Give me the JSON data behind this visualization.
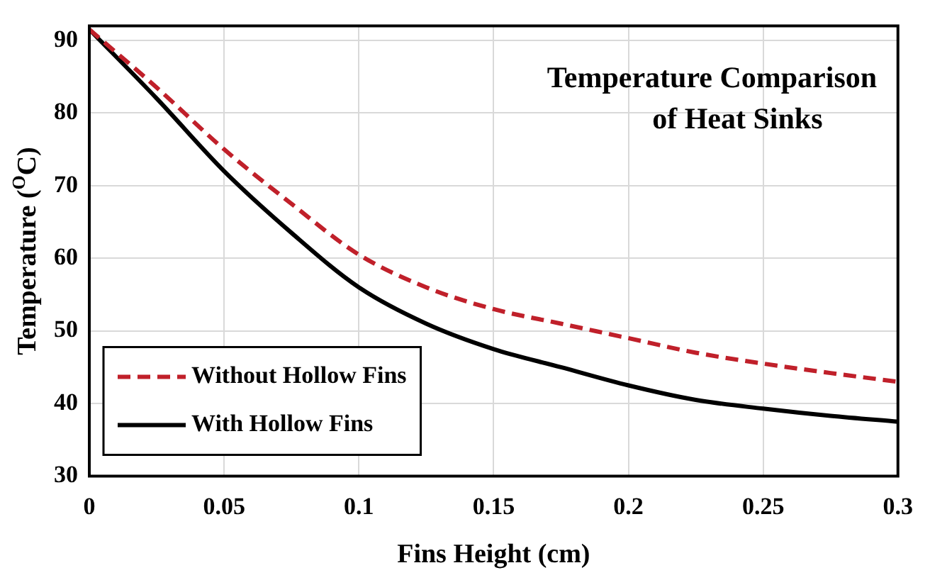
{
  "chart_data": {
    "type": "line",
    "title": "Temperature Comparison\nof Heat Sinks",
    "xlabel": "Fins Height (cm)",
    "ylabel": "Temperature ($^{O}$C)",
    "x": [
      0,
      0.025,
      0.05,
      0.075,
      0.1,
      0.125,
      0.15,
      0.175,
      0.2,
      0.225,
      0.25,
      0.275,
      0.3
    ],
    "series": [
      {
        "name": "Without Hollow Fins",
        "color": "#c0202a",
        "line_style": "dashed",
        "values": [
          91.5,
          83.5,
          75,
          67.5,
          60.5,
          56,
          53,
          51,
          49,
          47,
          45.5,
          44.2,
          43
        ]
      },
      {
        "name": "With Hollow Fins",
        "color": "#000000",
        "line_style": "solid",
        "values": [
          91.5,
          82,
          72,
          63.5,
          56,
          51,
          47.5,
          45,
          42.5,
          40.5,
          39.3,
          38.3,
          37.5
        ]
      }
    ],
    "xlim": [
      0,
      0.3
    ],
    "xticks": [
      0,
      0.05,
      0.1,
      0.15,
      0.2,
      0.25,
      0.3
    ],
    "ylim": [
      30,
      92
    ],
    "yticks": [
      30,
      40,
      50,
      60,
      70,
      80,
      90
    ],
    "grid": true,
    "legend": "bottom left",
    "marker": "none"
  }
}
